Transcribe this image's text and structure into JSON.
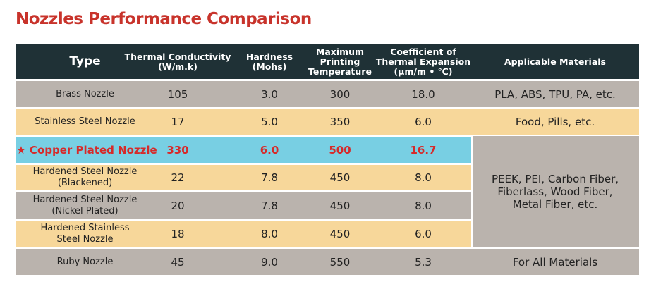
{
  "title": "Nozzles Performance Comparison",
  "headers": {
    "type": "Type",
    "thermal": "Thermal Conductivity\n(W/m.k)",
    "hardness": "Hardness\n(Mohs)",
    "max_temp": "Maximum\nPrinting\nTemperature",
    "expansion": "Coefficient of\nThermal Expansion\n(μm/m • ℃)",
    "materials": "Applicable Materials"
  },
  "rows": [
    {
      "name": "Brass Nozzle",
      "thermal": "105",
      "hardness": "3.0",
      "temp": "300",
      "expansion": "18.0",
      "materials": "PLA, ABS, TPU, PA, etc."
    },
    {
      "name": "Stainless Steel Nozzle",
      "thermal": "17",
      "hardness": "5.0",
      "temp": "350",
      "expansion": "6.0",
      "materials": "Food, Pills, etc."
    },
    {
      "name": "★ Copper Plated Nozzle",
      "thermal": "330",
      "hardness": "6.0",
      "temp": "500",
      "expansion": "16.7"
    },
    {
      "name": "Hardened Steel Nozzle\n(Blackened)",
      "thermal": "22",
      "hardness": "7.8",
      "temp": "450",
      "expansion": "8.0"
    },
    {
      "name": "Hardened Steel Nozzle\n(Nickel Plated)",
      "thermal": "20",
      "hardness": "7.8",
      "temp": "450",
      "expansion": "8.0"
    },
    {
      "name": "Hardened Stainless\nSteel Nozzle",
      "thermal": "18",
      "hardness": "8.0",
      "temp": "450",
      "expansion": "6.0"
    },
    {
      "name": "Ruby Nozzle",
      "thermal": "45",
      "hardness": "9.0",
      "temp": "550",
      "expansion": "5.3",
      "materials": "For All Materials"
    }
  ],
  "merged_materials": "PEEK, PEI, Carbon Fiber,\nFiberlass, Wood Fiber,\nMetal Fiber, etc.",
  "colors": {
    "title": "#c8332b",
    "header_bg": "#1f3136",
    "row_gray": "#bab3ad",
    "row_yellow": "#f7d79a",
    "row_highlight": "#78cfe3",
    "highlight_text": "#d62a2a"
  }
}
